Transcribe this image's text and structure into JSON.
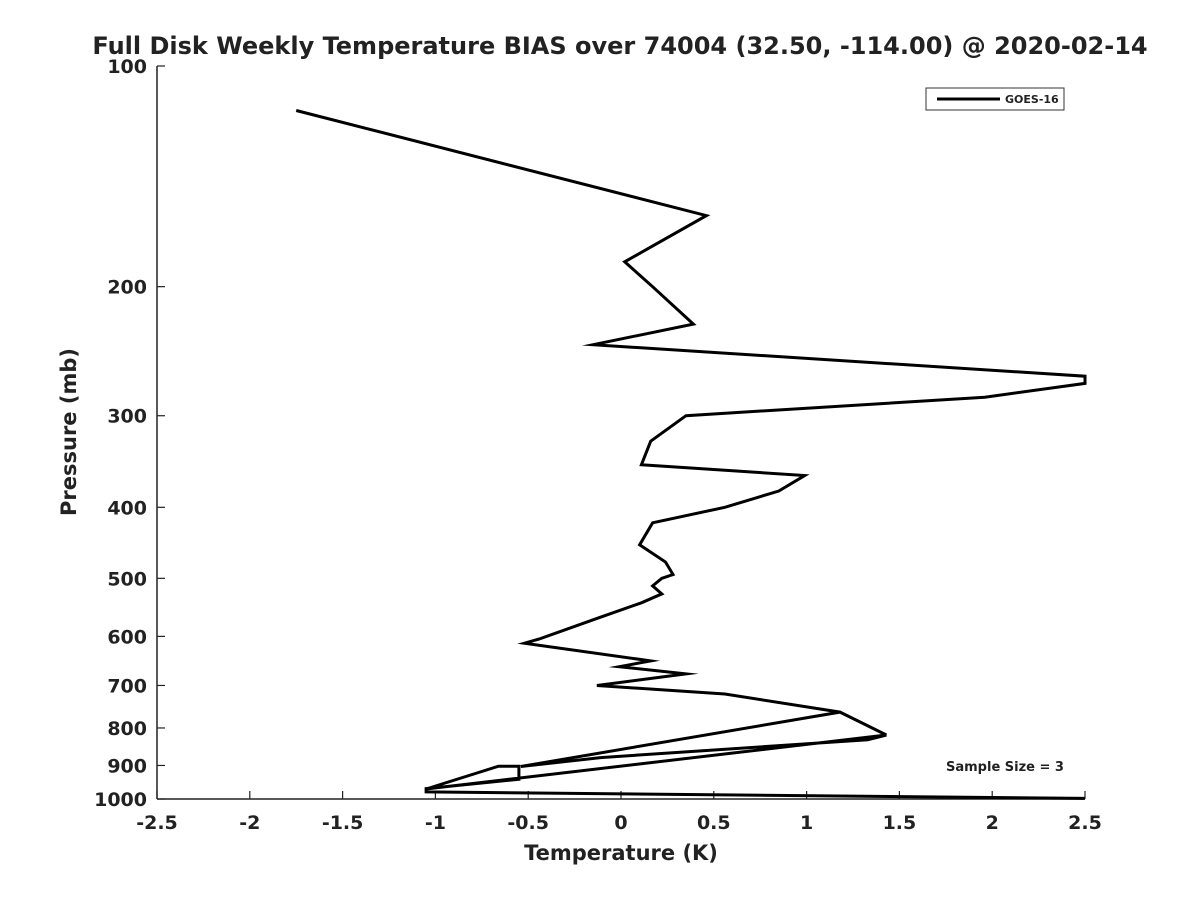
{
  "chart_data": {
    "type": "line",
    "title": "Full Disk Weekly Temperature BIAS over 74004 (32.50, -114.00) @ 2020-02-14",
    "xlabel": "Temperature (K)",
    "ylabel": "Pressure (mb)",
    "xlim": [
      -2.5,
      2.5
    ],
    "ylim": [
      1000,
      100
    ],
    "y_scale": "log",
    "x_ticks": [
      "-2.5",
      "-2",
      "-1.5",
      "-1",
      "-0.5",
      "0",
      "0.5",
      "1",
      "1.5",
      "2",
      "2.5"
    ],
    "y_ticks": [
      "100",
      "200",
      "300",
      "400",
      "500",
      "600",
      "700",
      "800",
      "900",
      "1000"
    ],
    "grid": false,
    "legend": {
      "placement": "top-right",
      "entries": [
        "GOES-16"
      ]
    },
    "annotation": "Sample Size = 3",
    "line_color": "#000000",
    "series": [
      {
        "name": "GOES-16",
        "x": [
          2.5,
          -1.05,
          -1.05,
          -0.55,
          -0.55,
          -0.66,
          -1.05,
          1.43,
          1.33,
          -0.11,
          -0.54,
          1.18,
          1.43,
          1.18,
          0.56,
          -0.13,
          0.35,
          -0.01,
          0.16,
          -0.52,
          -0.44,
          -0.12,
          0.11,
          0.22,
          0.17,
          0.22,
          0.28,
          0.24,
          0.1,
          0.17,
          0.56,
          0.85,
          0.99,
          0.11,
          0.16,
          0.35,
          1.96,
          2.5,
          2.5,
          -0.15,
          0.39,
          0.17,
          0.02,
          0.46,
          -1.75
        ],
        "y": [
          998,
          978,
          968,
          940,
          902,
          902,
          969,
          818,
          830,
          878,
          903,
          761,
          818,
          761,
          719,
          700,
          675,
          660,
          648,
          613,
          605,
          566,
          540,
          525,
          512,
          500,
          494,
          475,
          450,
          420,
          400,
          380,
          362,
          350,
          325,
          300,
          283,
          271,
          265,
          240,
          225,
          200,
          185,
          160,
          115
        ]
      }
    ]
  }
}
